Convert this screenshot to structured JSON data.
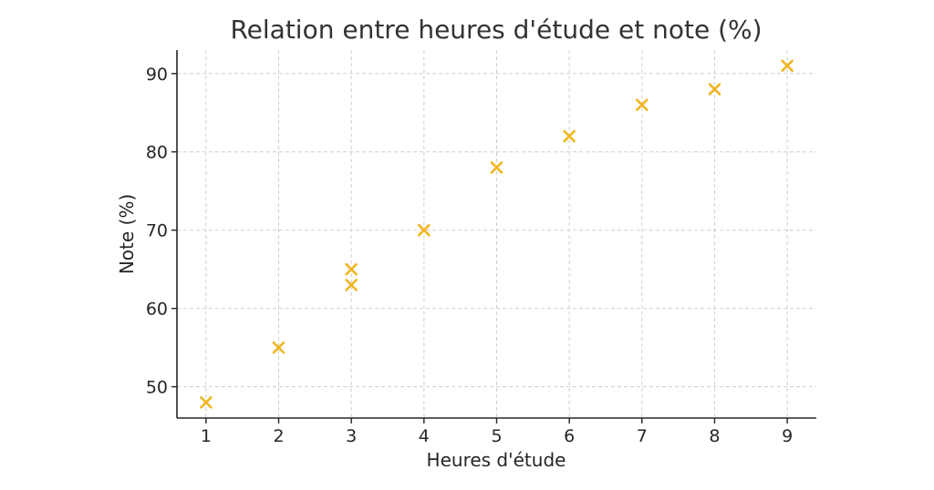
{
  "chart_data": {
    "type": "scatter",
    "title": "Relation entre heures d'étude et note (%)",
    "xlabel": "Heures d'étude",
    "ylabel": "Note (%)",
    "xlim": [
      0.6,
      9.4
    ],
    "ylim": [
      46,
      93
    ],
    "xticks": [
      1,
      2,
      3,
      4,
      5,
      6,
      7,
      8,
      9
    ],
    "yticks": [
      50,
      60,
      70,
      80,
      90
    ],
    "grid": true,
    "marker": "x",
    "color": "#f2b623",
    "points": [
      {
        "x": 1,
        "y": 48
      },
      {
        "x": 2,
        "y": 55
      },
      {
        "x": 3,
        "y": 63
      },
      {
        "x": 3,
        "y": 65
      },
      {
        "x": 4,
        "y": 70
      },
      {
        "x": 5,
        "y": 78
      },
      {
        "x": 6,
        "y": 82
      },
      {
        "x": 7,
        "y": 86
      },
      {
        "x": 8,
        "y": 88
      },
      {
        "x": 9,
        "y": 91
      }
    ]
  }
}
